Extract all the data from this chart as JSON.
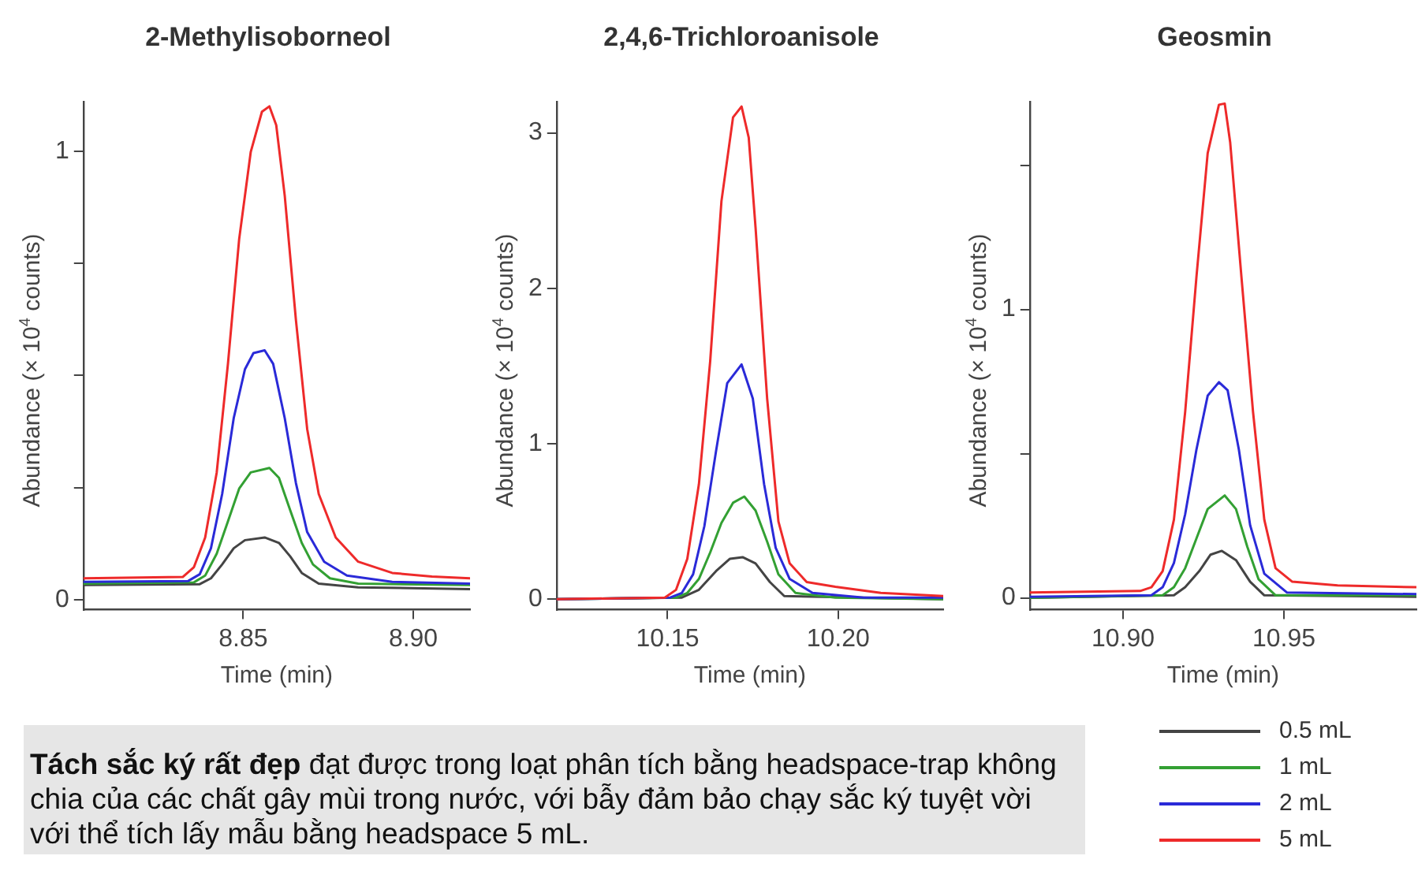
{
  "chart_data": [
    {
      "type": "line",
      "title": "2-Methylisoborneol",
      "xlabel": "Time (min)",
      "ylabel": "Abundance (× 10$^{4}$ counts)",
      "xlim": [
        8.803,
        8.9167
      ],
      "xticks": [
        8.85,
        {
          "value": 8.9,
          "label": "8.90"
        }
      ],
      "ylim": [
        -0.022,
        1.11
      ],
      "yticks": [
        0,
        {
          "value": 0.25,
          "label": null
        },
        {
          "value": 0.5,
          "label": null
        },
        {
          "value": 0.75,
          "label": null
        },
        1
      ],
      "grid": false,
      "legend": false,
      "marker": "none",
      "line_style": "solid",
      "annotations": [
        "Tách sắc ký rất đẹp",
        "đạt được trong loạt phân tích bằng headspace-trap không chia của các chất gây mùi trong nước, với bẫy đảm bảo chạy sắc ký tuyệt vời với thể tích lấy mẫu bằng headspace 5 mL."
      ],
      "series": [
        {
          "color": "#ee2a2a",
          "x": [
            8.803,
            8.8322,
            8.8355,
            8.8388,
            8.8422,
            8.8455,
            8.8488,
            8.8522,
            8.8555,
            8.8577,
            8.8597,
            8.8622,
            8.8655,
            8.8688,
            8.8722,
            8.8772,
            8.8838,
            8.8938,
            8.9055,
            8.9167
          ],
          "values": [
            0.048,
            0.051,
            0.073,
            0.139,
            0.284,
            0.526,
            0.804,
            0.998,
            1.088,
            1.1,
            1.058,
            0.901,
            0.623,
            0.381,
            0.236,
            0.139,
            0.085,
            0.06,
            0.052,
            0.048
          ]
        },
        {
          "color": "#2a2ad8",
          "x": [
            8.803,
            8.8338,
            8.8372,
            8.8405,
            8.8438,
            8.8472,
            8.8505,
            8.853,
            8.8563,
            8.8588,
            8.8622,
            8.8655,
            8.8688,
            8.8738,
            8.8805,
            8.8938,
            8.9167
          ],
          "values": [
            0.04,
            0.042,
            0.057,
            0.115,
            0.236,
            0.405,
            0.514,
            0.55,
            0.556,
            0.526,
            0.405,
            0.26,
            0.151,
            0.085,
            0.054,
            0.04,
            0.036
          ]
        },
        {
          "color": "#33a033",
          "x": [
            8.803,
            8.8355,
            8.8388,
            8.8422,
            8.8455,
            8.8488,
            8.8522,
            8.8577,
            8.8605,
            8.8638,
            8.8672,
            8.8705,
            8.8755,
            8.8838,
            8.9167
          ],
          "values": [
            0.036,
            0.039,
            0.054,
            0.103,
            0.175,
            0.248,
            0.284,
            0.294,
            0.272,
            0.2,
            0.127,
            0.079,
            0.048,
            0.036,
            0.033
          ]
        },
        {
          "color": "#444444",
          "x": [
            8.803,
            8.8372,
            8.8405,
            8.8438,
            8.8472,
            8.8505,
            8.8563,
            8.8605,
            8.8638,
            8.8672,
            8.8722,
            8.8838,
            8.9167
          ],
          "values": [
            0.033,
            0.035,
            0.048,
            0.079,
            0.115,
            0.133,
            0.139,
            0.127,
            0.097,
            0.06,
            0.036,
            0.028,
            0.024
          ]
        }
      ]
    },
    {
      "type": "line",
      "title": "2,4,6-Trichloroanisole",
      "xlabel": "Time (min)",
      "ylabel": "Abundance (× 10$^{4}$ counts)",
      "xlim": [
        10.1175,
        10.2308
      ],
      "xticks": [
        10.15,
        {
          "value": 10.2,
          "label": "10.20"
        }
      ],
      "ylim": [
        -0.068,
        3.2
      ],
      "yticks": [
        0,
        1,
        2,
        3
      ],
      "grid": false,
      "legend": false,
      "marker": "none",
      "line_style": "solid",
      "series": [
        {
          "color": "#ee2a2a",
          "x": [
            10.1175,
            10.1492,
            10.1525,
            10.1558,
            10.1592,
            10.1625,
            10.1658,
            10.1692,
            10.1717,
            10.1738,
            10.1758,
            10.1792,
            10.1825,
            10.1858,
            10.1908,
            10.1992,
            10.2125,
            10.2308
          ],
          "values": [
            0,
            0.01,
            0.06,
            0.26,
            0.74,
            1.53,
            2.56,
            3.1,
            3.17,
            2.97,
            2.39,
            1.29,
            0.5,
            0.23,
            0.11,
            0.08,
            0.04,
            0.02
          ]
        },
        {
          "color": "#2a2ad8",
          "x": [
            10.1175,
            10.1508,
            10.1542,
            10.1575,
            10.1608,
            10.1642,
            10.1675,
            10.1717,
            10.175,
            10.1783,
            10.1817,
            10.1858,
            10.1925,
            10.2075,
            10.2308
          ],
          "values": [
            0,
            0.01,
            0.04,
            0.16,
            0.47,
            0.95,
            1.39,
            1.51,
            1.29,
            0.74,
            0.33,
            0.13,
            0.04,
            0.01,
            0.01
          ]
        },
        {
          "color": "#33a033",
          "x": [
            10.1175,
            10.1525,
            10.1558,
            10.1592,
            10.1625,
            10.1658,
            10.1692,
            10.1725,
            10.1758,
            10.1792,
            10.1825,
            10.1875,
            10.1992,
            10.2308
          ],
          "values": [
            0,
            0.01,
            0.04,
            0.13,
            0.3,
            0.49,
            0.62,
            0.66,
            0.57,
            0.37,
            0.16,
            0.04,
            0.01,
            0
          ]
        },
        {
          "color": "#444444",
          "x": [
            10.1175,
            10.1542,
            10.1592,
            10.1642,
            10.1683,
            10.172,
            10.1758,
            10.18,
            10.1842,
            10.2308
          ],
          "values": [
            0,
            0.01,
            0.06,
            0.18,
            0.26,
            0.27,
            0.23,
            0.11,
            0.02,
            0
          ]
        }
      ]
    },
    {
      "type": "line",
      "title": "Geosmin",
      "xlabel": "Time (min)",
      "ylabel": "Abundance (× 10$^{4}$ counts)",
      "xlim": [
        10.871,
        10.9912
      ],
      "xticks": [
        {
          "value": 10.9,
          "label": "10.90"
        },
        10.95
      ],
      "ylim": [
        -0.041,
        1.72
      ],
      "yticks": [
        0,
        {
          "value": 0.5,
          "label": null
        },
        1,
        {
          "value": 1.5,
          "label": null
        }
      ],
      "grid": false,
      "legend": "bottom right",
      "marker": "none",
      "line_style": "solid",
      "series": [
        {
          "name": "5 mL",
          "color": "#ee2a2a",
          "x": [
            10.871,
            10.9053,
            10.9088,
            10.9123,
            10.9158,
            10.9193,
            10.9228,
            10.9263,
            10.9298,
            10.9316,
            10.9333,
            10.9368,
            10.9404,
            10.9439,
            10.9474,
            10.9526,
            10.9667,
            10.9912
          ],
          "values": [
            0.019,
            0.024,
            0.037,
            0.093,
            0.271,
            0.645,
            1.112,
            1.542,
            1.71,
            1.714,
            1.579,
            1.112,
            0.645,
            0.271,
            0.103,
            0.056,
            0.043,
            0.037
          ]
        },
        {
          "name": "2 mL",
          "color": "#2a2ad8",
          "x": [
            10.871,
            10.9088,
            10.9123,
            10.9158,
            10.9193,
            10.9228,
            10.9263,
            10.9298,
            10.9325,
            10.936,
            10.9395,
            10.9439,
            10.9509,
            10.9912
          ],
          "values": [
            0.004,
            0.009,
            0.037,
            0.121,
            0.29,
            0.514,
            0.701,
            0.748,
            0.72,
            0.514,
            0.252,
            0.084,
            0.019,
            0.013
          ]
        },
        {
          "name": "1 mL",
          "color": "#33a033",
          "x": [
            10.871,
            10.9123,
            10.9158,
            10.9193,
            10.9228,
            10.9263,
            10.9316,
            10.9351,
            10.9386,
            10.9421,
            10.9474,
            10.9912
          ],
          "values": [
            0,
            0.009,
            0.037,
            0.103,
            0.206,
            0.308,
            0.355,
            0.308,
            0.178,
            0.065,
            0.009,
            0.009
          ]
        },
        {
          "name": "0.5 mL",
          "color": "#444444",
          "x": [
            10.871,
            10.9158,
            10.9193,
            10.9237,
            10.9272,
            10.9307,
            10.9351,
            10.9395,
            10.9439,
            10.9912
          ],
          "values": [
            0,
            0.009,
            0.037,
            0.093,
            0.15,
            0.163,
            0.131,
            0.056,
            0.009,
            0.004
          ]
        }
      ]
    }
  ]
}
